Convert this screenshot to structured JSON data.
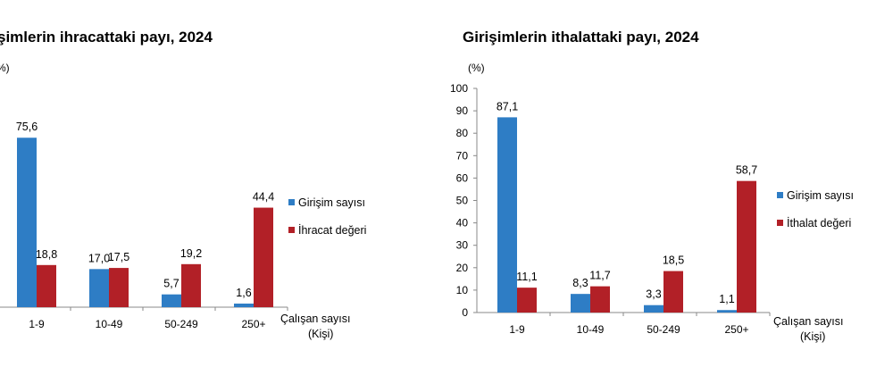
{
  "chart_data": [
    {
      "type": "bar",
      "title": "şimlerin ihracattaki payı, 2024",
      "unit": "(%)",
      "xlabel": "Çalışan sayısı",
      "xlabel_sub": "(Kişi)",
      "categories": [
        "1-9",
        "10-49",
        "50-249",
        "250+"
      ],
      "series": [
        {
          "name": "Girişim sayısı",
          "values": [
            75.6,
            17.0,
            5.7,
            1.6
          ],
          "labels": [
            "75,6",
            "17,0",
            "5,7",
            "1,6"
          ],
          "color": "#2e7dc5"
        },
        {
          "name": "İhracat değeri",
          "values": [
            18.8,
            17.5,
            19.2,
            44.4
          ],
          "labels": [
            "18,8",
            "17,5",
            "19,2",
            "44,4"
          ],
          "color": "#b22027"
        }
      ],
      "ylim": [
        0,
        100
      ],
      "legend_position": "right"
    },
    {
      "type": "bar",
      "title": "Girişimlerin ithalattaki payı, 2024",
      "unit": "(%)",
      "xlabel": "Çalışan sayısı",
      "xlabel_sub": "(Kişi)",
      "categories": [
        "1-9",
        "10-49",
        "50-249",
        "250+"
      ],
      "yticks": [
        "0",
        "10",
        "20",
        "30",
        "40",
        "50",
        "60",
        "70",
        "80",
        "90",
        "100"
      ],
      "series": [
        {
          "name": "Girişim sayısı",
          "values": [
            87.1,
            8.3,
            3.3,
            1.1
          ],
          "labels": [
            "87,1",
            "8,3",
            "3,3",
            "1,1"
          ],
          "color": "#2e7dc5"
        },
        {
          "name": "İthalat değeri",
          "values": [
            11.1,
            11.7,
            18.5,
            58.7
          ],
          "labels": [
            "11,1",
            "11,7",
            "18,5",
            "58,7"
          ],
          "color": "#b22027"
        }
      ],
      "ylim": [
        0,
        100
      ],
      "legend_position": "right"
    }
  ]
}
